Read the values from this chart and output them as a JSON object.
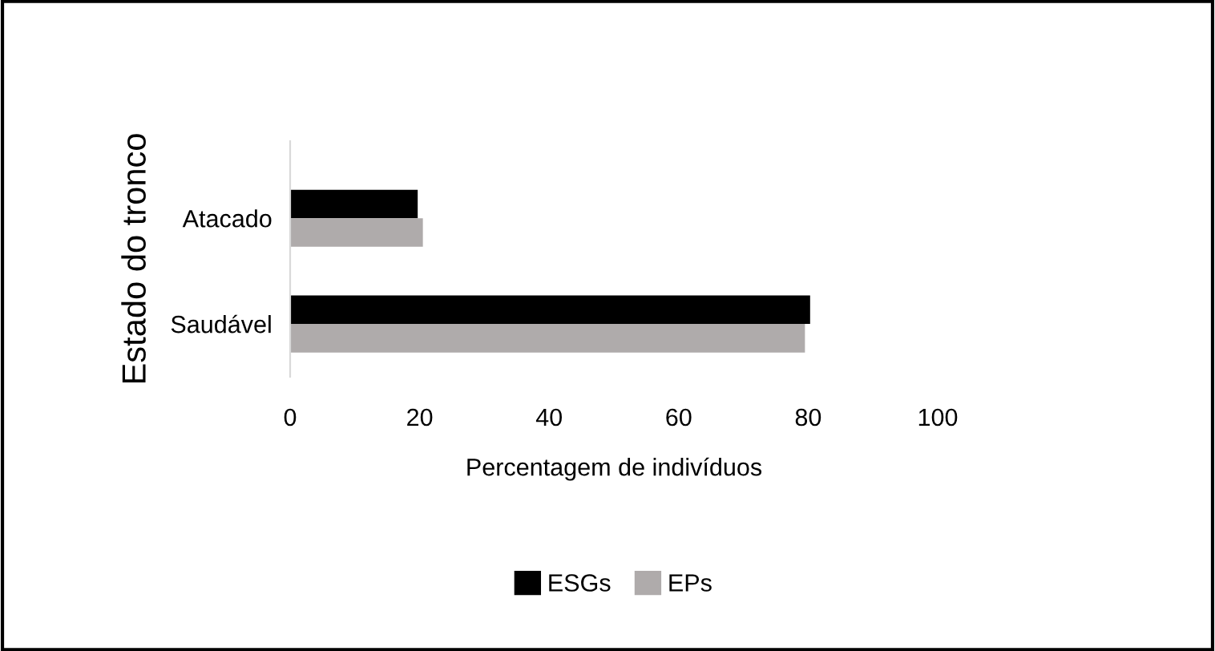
{
  "chart_data": {
    "type": "bar",
    "orientation": "horizontal",
    "categories": [
      "Atacado",
      "Saudável"
    ],
    "series": [
      {
        "name": "ESGs",
        "color": "#000000",
        "values": [
          19.7,
          80.3
        ]
      },
      {
        "name": "EPs",
        "color": "#afabab",
        "values": [
          20.5,
          79.5
        ]
      }
    ],
    "xlim": [
      0,
      100
    ],
    "xticks": [
      0,
      20,
      40,
      60,
      80,
      100
    ],
    "xlabel": "Percentagem de indivíduos",
    "ylabel": "Estado do tronco",
    "grid": false,
    "legend": "bottom"
  }
}
